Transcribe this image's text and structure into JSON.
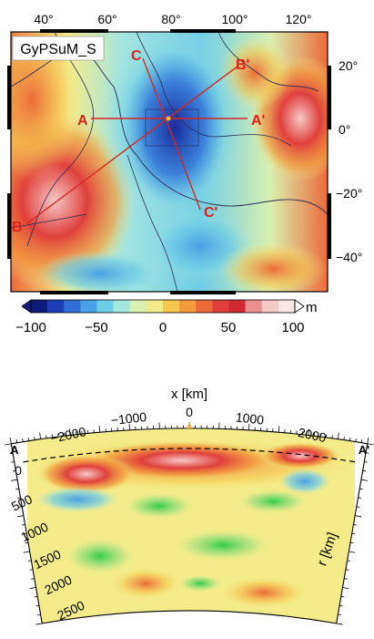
{
  "map": {
    "model_label": "GyPSuM_S",
    "lon_ticks": [
      "40°",
      "60°",
      "80°",
      "100°",
      "120°"
    ],
    "lat_ticks": [
      "20°",
      "0°",
      "−20°",
      "−40°"
    ],
    "profiles": [
      {
        "start": "A",
        "end": "A'"
      },
      {
        "start": "B",
        "end": "B'"
      },
      {
        "start": "C",
        "end": "C'"
      }
    ]
  },
  "colorbar": {
    "unit": "m",
    "ticks": [
      "−100",
      "−50",
      "0",
      "50",
      "100"
    ],
    "range": [
      -100,
      100
    ],
    "colors": [
      "#101a7a",
      "#1c3fb8",
      "#2f6fd6",
      "#4aa0e4",
      "#6fcde6",
      "#a6e6e0",
      "#d9f0b0",
      "#f4ec8a",
      "#f6c64f",
      "#f29a3c",
      "#ec6a3a",
      "#e0403c",
      "#d02b35",
      "#e8908e",
      "#f6c8c6",
      "#fbe6e6"
    ]
  },
  "section": {
    "x_title": "x [km]",
    "x_ticks": [
      "−2000",
      "−1000",
      "0",
      "1000",
      "2000"
    ],
    "r_title": "r [km]",
    "r_ticks": [
      "0",
      "500",
      "1000",
      "1500",
      "2000",
      "2500"
    ],
    "left_label": "A",
    "right_label": "A'"
  }
}
